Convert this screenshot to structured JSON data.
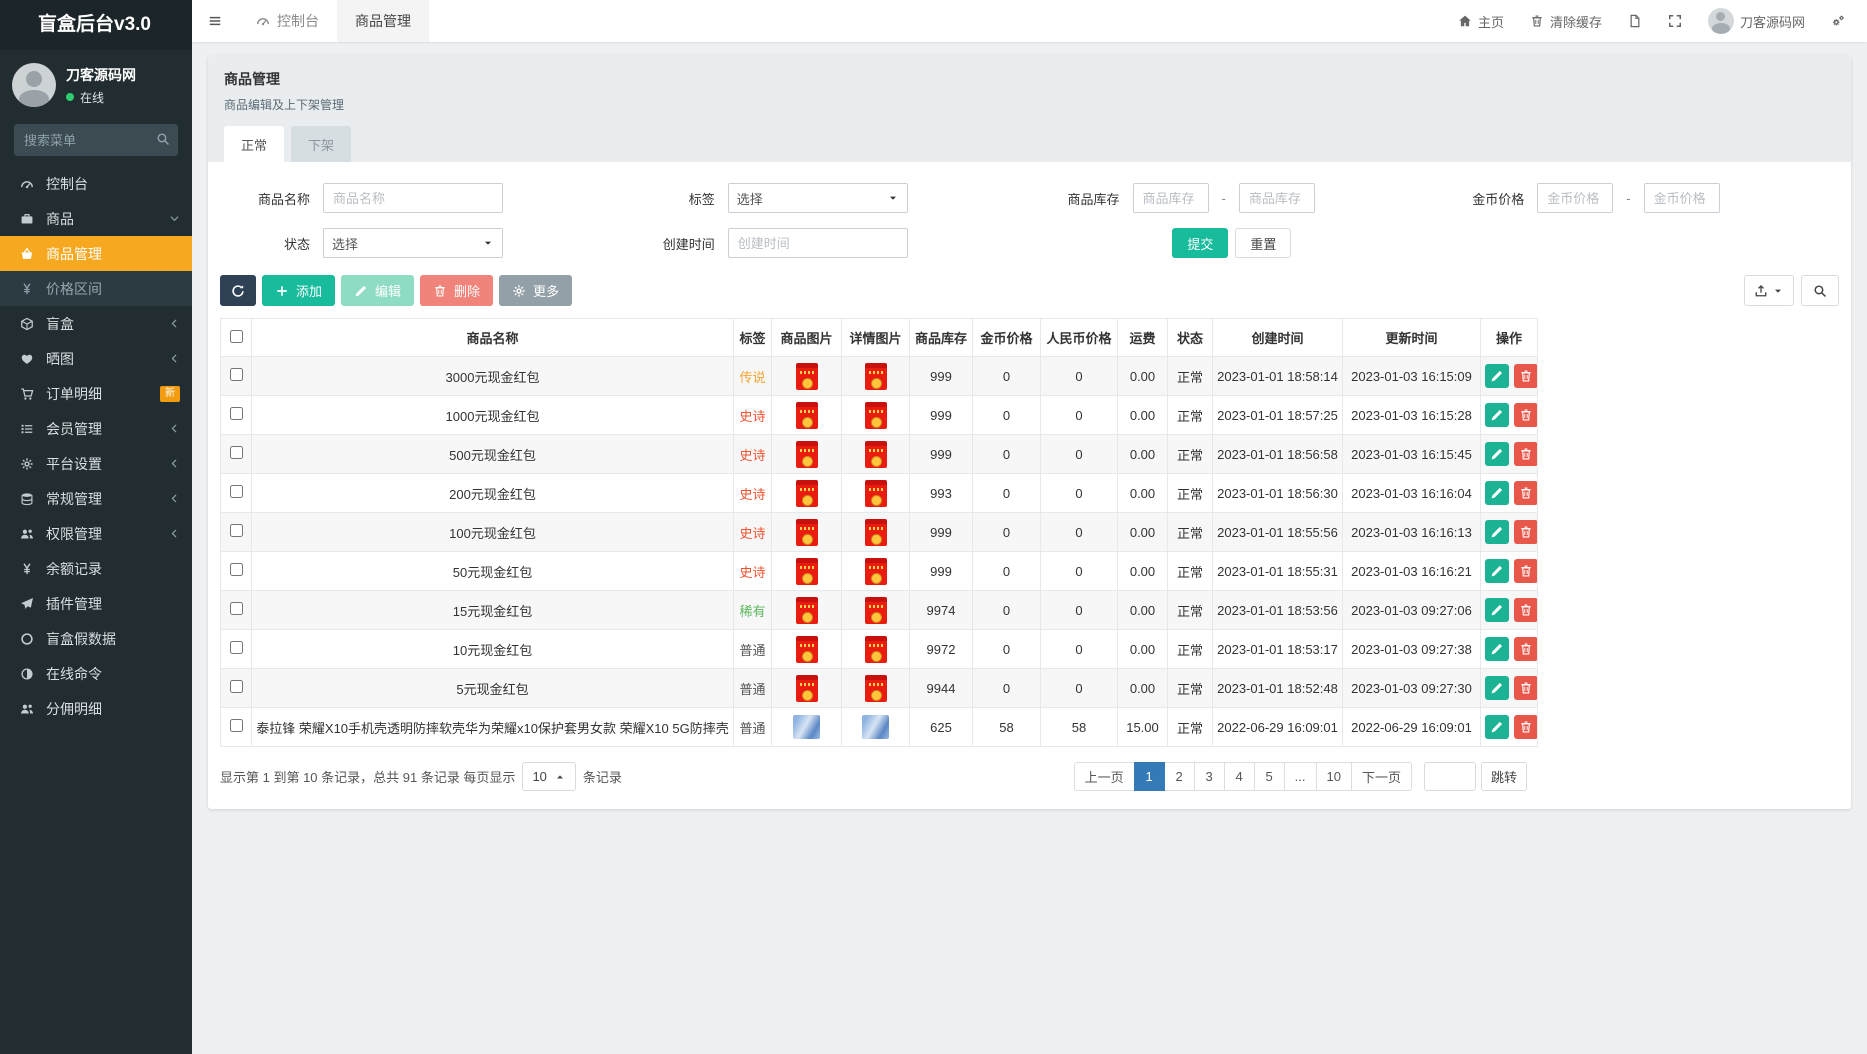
{
  "app": {
    "logo": "盲盒后台v3.0"
  },
  "sidebar": {
    "user": {
      "name": "刀客源码网",
      "status": "在线"
    },
    "search_placeholder": "搜索菜单",
    "items": [
      {
        "icon": "gauge-icon",
        "label": "控制台"
      },
      {
        "icon": "briefcase-icon",
        "label": "商品",
        "chevron": "down"
      },
      {
        "icon": "basket-icon",
        "label": "商品管理",
        "sub": true,
        "active": true
      },
      {
        "icon": "yen-icon",
        "label": "价格区间",
        "sub": true
      },
      {
        "icon": "cube-icon",
        "label": "盲盒",
        "chevron": "left"
      },
      {
        "icon": "heart-icon",
        "label": "晒图",
        "chevron": "left"
      },
      {
        "icon": "cart-icon",
        "label": "订单明细",
        "badge": "新"
      },
      {
        "icon": "list-icon",
        "label": "会员管理",
        "chevron": "left"
      },
      {
        "icon": "gear-icon",
        "label": "平台设置",
        "chevron": "left"
      },
      {
        "icon": "database-icon",
        "label": "常规管理",
        "chevron": "left"
      },
      {
        "icon": "users-icon",
        "label": "权限管理",
        "chevron": "left"
      },
      {
        "icon": "yen-icon",
        "label": "余额记录"
      },
      {
        "icon": "rocket-icon",
        "label": "插件管理"
      },
      {
        "icon": "circle-icon",
        "label": "盲盒假数据"
      },
      {
        "icon": "adjust-icon",
        "label": "在线命令"
      },
      {
        "icon": "users-icon",
        "label": "分佣明细"
      }
    ]
  },
  "topbar": {
    "tabs": [
      {
        "icon": "gauge-icon",
        "label": "控制台"
      },
      {
        "label": "商品管理",
        "active": true
      }
    ],
    "home_label": "主页",
    "clear_cache_label": "清除缓存",
    "username": "刀客源码网"
  },
  "page": {
    "title": "商品管理",
    "subtitle": "商品编辑及上下架管理",
    "tabs": [
      "正常",
      "下架"
    ]
  },
  "filters": {
    "name_label": "商品名称",
    "name_placeholder": "商品名称",
    "tag_label": "标签",
    "tag_value": "选择",
    "stock_label": "商品库存",
    "stock_min_placeholder": "商品库存",
    "stock_max_placeholder": "商品库存",
    "gold_label": "金币价格",
    "gold_min_placeholder": "金币价格",
    "gold_max_placeholder": "金币价格",
    "status_label": "状态",
    "status_value": "选择",
    "created_label": "创建时间",
    "created_placeholder": "创建时间",
    "range_sep": "-",
    "submit": "提交",
    "reset": "重置"
  },
  "toolbar": {
    "add": "添加",
    "edit": "编辑",
    "delete": "删除",
    "more": "更多"
  },
  "table": {
    "columns": [
      "商品名称",
      "标签",
      "商品图片",
      "详情图片",
      "商品库存",
      "金币价格",
      "人民币价格",
      "运费",
      "状态",
      "创建时间",
      "更新时间",
      "操作"
    ],
    "tag_colors": {
      "传说": "#f5a431",
      "史诗": "#f3512e",
      "稀有": "#5cb85c",
      "普通": "#555555"
    },
    "rows": [
      {
        "name": "3000元现金红包",
        "tag": "传说",
        "image": "red-packet",
        "stock": "999",
        "gold": "0",
        "rmb": "0",
        "ship": "0.00",
        "status": "正常",
        "created": "2023-01-01 18:58:14",
        "updated": "2023-01-03 16:15:09"
      },
      {
        "name": "1000元现金红包",
        "tag": "史诗",
        "image": "red-packet",
        "stock": "999",
        "gold": "0",
        "rmb": "0",
        "ship": "0.00",
        "status": "正常",
        "created": "2023-01-01 18:57:25",
        "updated": "2023-01-03 16:15:28"
      },
      {
        "name": "500元现金红包",
        "tag": "史诗",
        "image": "red-packet",
        "stock": "999",
        "gold": "0",
        "rmb": "0",
        "ship": "0.00",
        "status": "正常",
        "created": "2023-01-01 18:56:58",
        "updated": "2023-01-03 16:15:45"
      },
      {
        "name": "200元现金红包",
        "tag": "史诗",
        "image": "red-packet",
        "stock": "993",
        "gold": "0",
        "rmb": "0",
        "ship": "0.00",
        "status": "正常",
        "created": "2023-01-01 18:56:30",
        "updated": "2023-01-03 16:16:04"
      },
      {
        "name": "100元现金红包",
        "tag": "史诗",
        "image": "red-packet",
        "stock": "999",
        "gold": "0",
        "rmb": "0",
        "ship": "0.00",
        "status": "正常",
        "created": "2023-01-01 18:55:56",
        "updated": "2023-01-03 16:16:13"
      },
      {
        "name": "50元现金红包",
        "tag": "史诗",
        "image": "red-packet",
        "stock": "999",
        "gold": "0",
        "rmb": "0",
        "ship": "0.00",
        "status": "正常",
        "created": "2023-01-01 18:55:31",
        "updated": "2023-01-03 16:16:21"
      },
      {
        "name": "15元现金红包",
        "tag": "稀有",
        "image": "red-packet",
        "stock": "9974",
        "gold": "0",
        "rmb": "0",
        "ship": "0.00",
        "status": "正常",
        "created": "2023-01-01 18:53:56",
        "updated": "2023-01-03 09:27:06"
      },
      {
        "name": "10元现金红包",
        "tag": "普通",
        "image": "red-packet",
        "stock": "9972",
        "gold": "0",
        "rmb": "0",
        "ship": "0.00",
        "status": "正常",
        "created": "2023-01-01 18:53:17",
        "updated": "2023-01-03 09:27:38"
      },
      {
        "name": "5元现金红包",
        "tag": "普通",
        "image": "red-packet",
        "stock": "9944",
        "gold": "0",
        "rmb": "0",
        "ship": "0.00",
        "status": "正常",
        "created": "2023-01-01 18:52:48",
        "updated": "2023-01-03 09:27:30"
      },
      {
        "name": "泰拉锋 荣耀X10手机壳透明防摔软壳华为荣耀x10保护套男女款 荣耀X10 5G防摔壳",
        "tag": "普通",
        "image": "phone-case",
        "stock": "625",
        "gold": "58",
        "rmb": "58",
        "ship": "15.00",
        "status": "正常",
        "created": "2022-06-29 16:09:01",
        "updated": "2022-06-29 16:09:01"
      }
    ]
  },
  "pagination": {
    "info_prefix": "显示第 1 到第 10 条记录，总共 91 条记录 每页显示",
    "page_size": "10",
    "info_suffix": "条记录",
    "prev": "上一页",
    "next": "下一页",
    "pages": [
      "1",
      "2",
      "3",
      "4",
      "5",
      "...",
      "10"
    ],
    "active_page": "1",
    "jump": "跳转"
  },
  "colors": {
    "sidebar_active": "#f6a821",
    "submit_green": "#18bc9c",
    "pager_active_blue": "#337ab7",
    "online_green": "#2ecc71"
  }
}
